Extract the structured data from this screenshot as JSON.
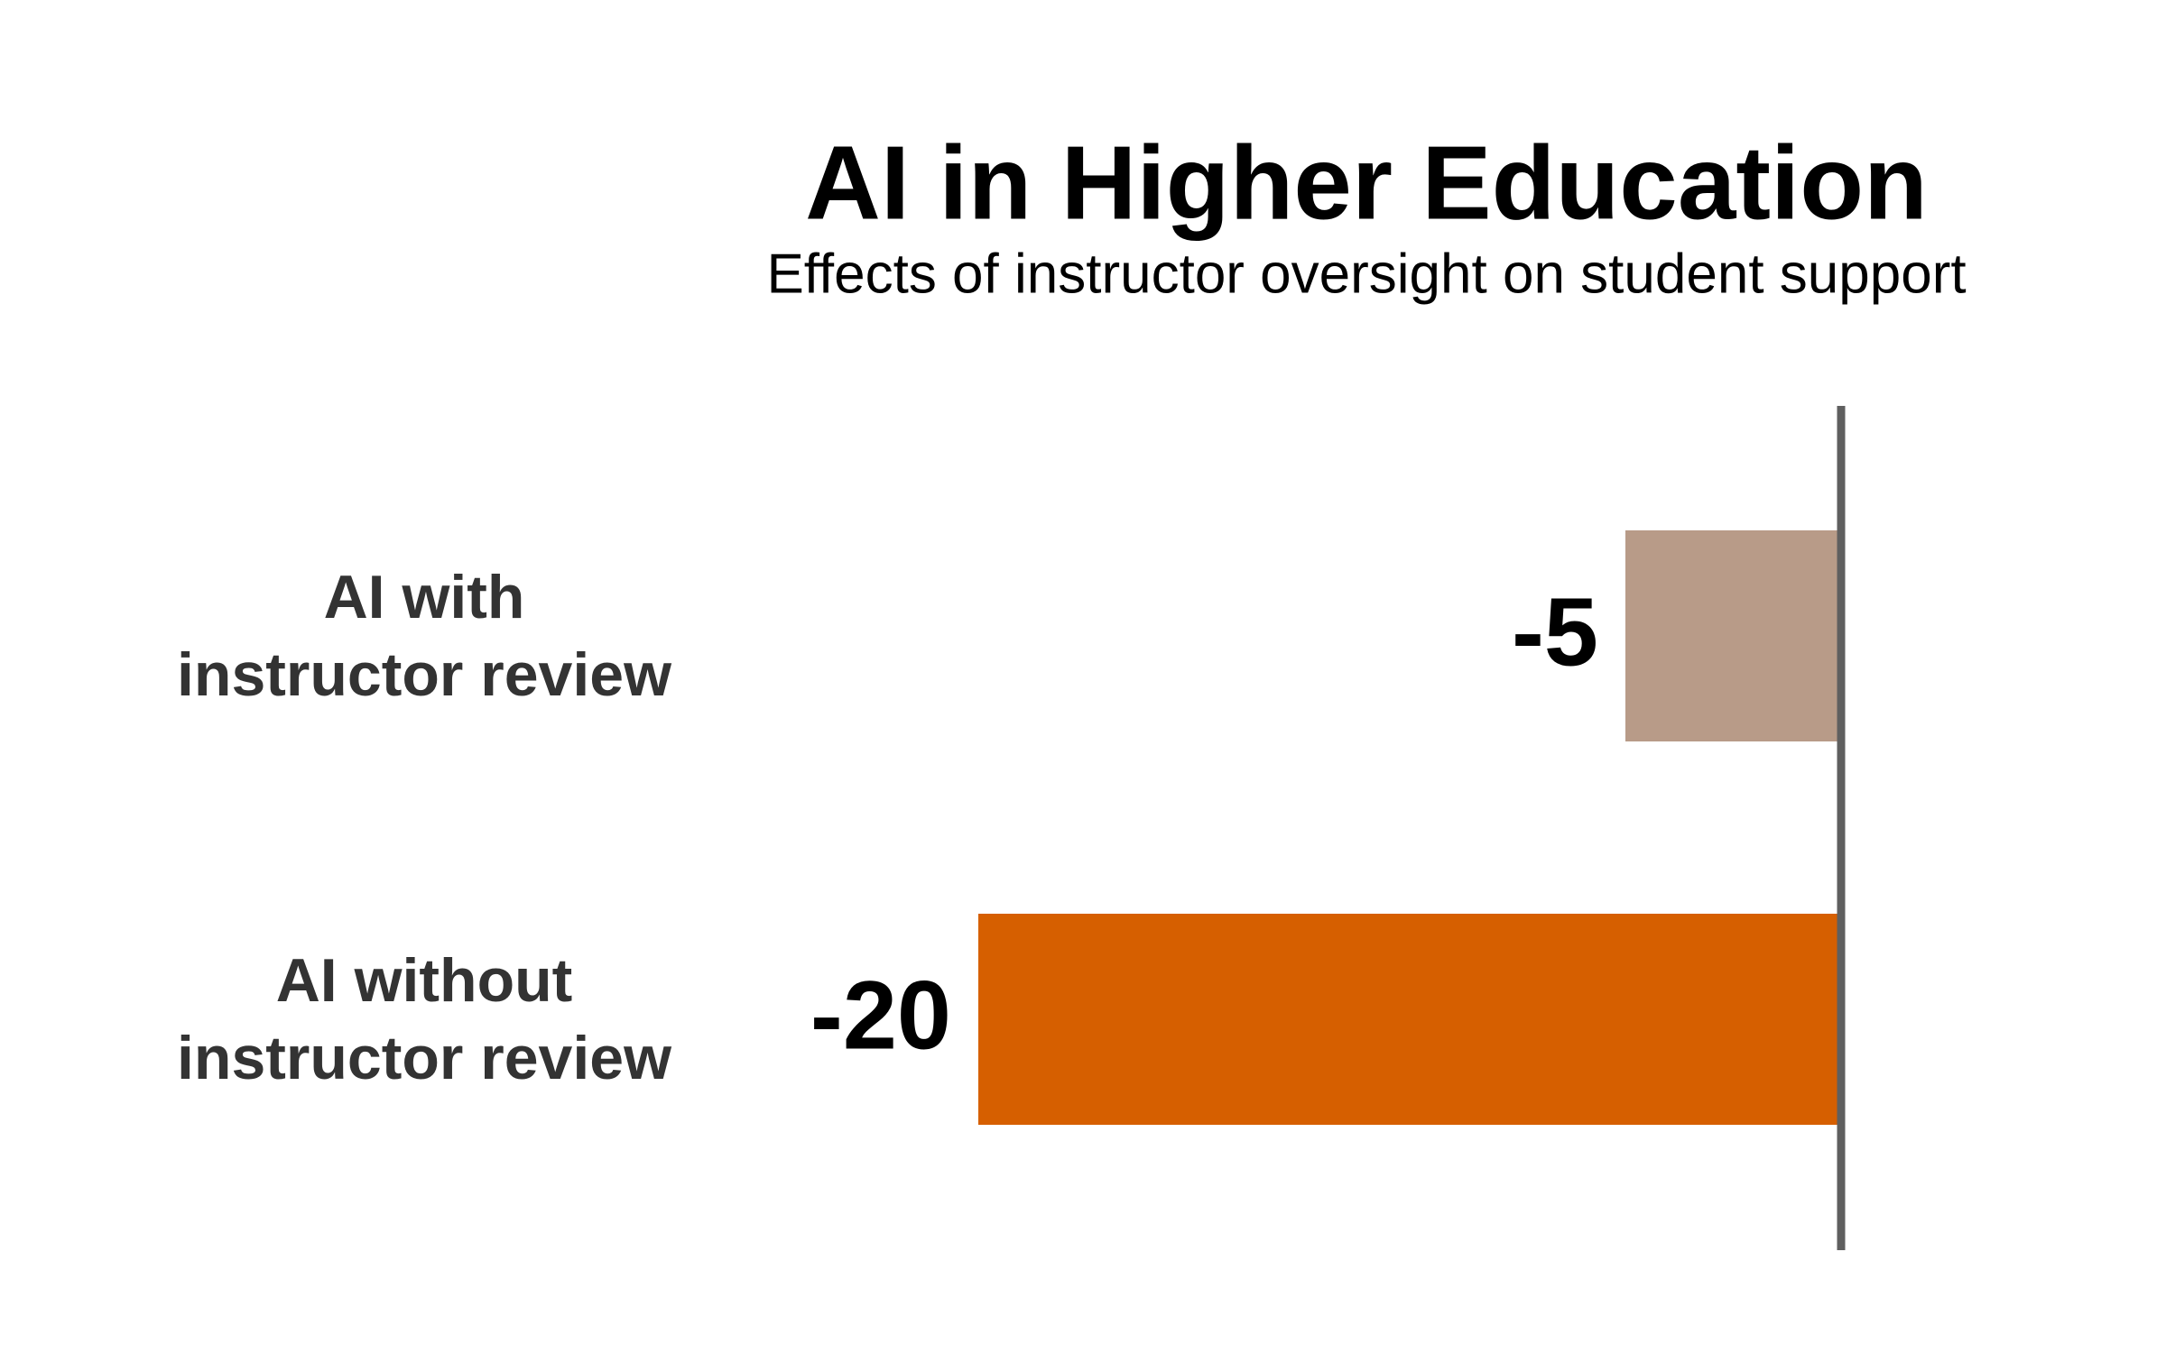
{
  "chart_data": {
    "type": "barh",
    "title": "AI in Higher Education",
    "subtitle": "Effects of instructor oversight on student support",
    "categories": [
      "AI with\ninstructor review",
      "AI without\ninstructor review"
    ],
    "values": [
      -5,
      -20
    ],
    "colors": [
      "#b89b88",
      "#d65f00"
    ]
  }
}
